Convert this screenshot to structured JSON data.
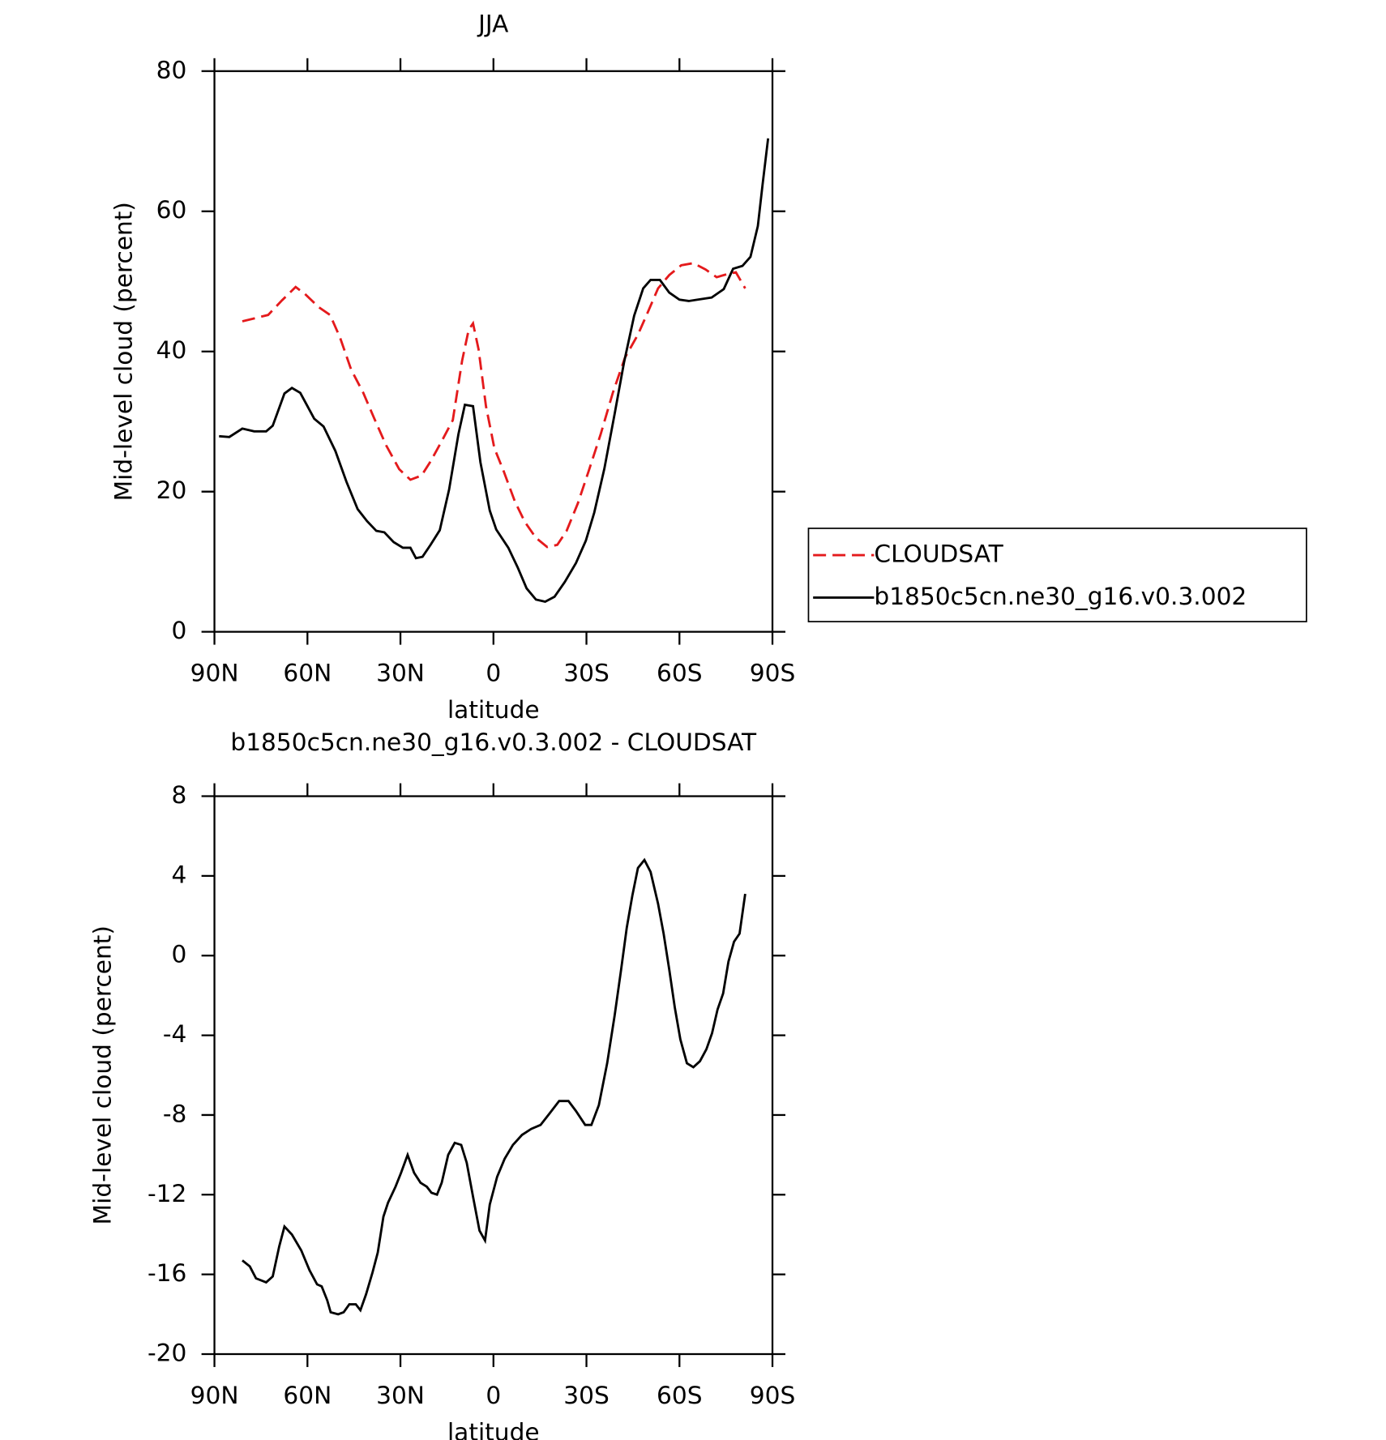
{
  "chart_data": [
    {
      "type": "line",
      "title": "JJA",
      "xlabel": "latitude",
      "ylabel": "Mid-level cloud (percent)",
      "xlim": [
        90,
        -90
      ],
      "xticks": [
        {
          "value": 90,
          "label": "90N"
        },
        {
          "value": 60,
          "label": "60N"
        },
        {
          "value": 30,
          "label": "30N"
        },
        0,
        {
          "value": -30,
          "label": "30S"
        },
        {
          "value": -60,
          "label": "60S"
        },
        {
          "value": -90,
          "label": "90S"
        }
      ],
      "ylim": [
        0,
        80
      ],
      "yticks": [
        0,
        20,
        40,
        60,
        80
      ],
      "legend": "right",
      "series": [
        {
          "name": "CLOUDSAT",
          "color": "#e41a1c",
          "linestyle": "dashed",
          "x": [
            81,
            72.7,
            68.2,
            63.8,
            60.8,
            56.3,
            52.7,
            49.5,
            45.9,
            42.0,
            38.4,
            34.6,
            30.4,
            26.8,
            23.2,
            20.3,
            16.7,
            13.1,
            10.1,
            8.0,
            6.6,
            4.8,
            2.4,
            -0.3,
            -3.3,
            -6.9,
            -10.1,
            -13.7,
            -17.3,
            -20.6,
            -23.6,
            -27.2,
            -30.7,
            -34.6,
            -38.5,
            -42.4,
            -46.6,
            -49.5,
            -53.1,
            -56.7,
            -60.6,
            -64.5,
            -68.4,
            -72,
            -75.2,
            -78.2,
            -81.2
          ],
          "values": [
            44.3,
            45.2,
            47.3,
            49.2,
            48.2,
            46.3,
            45.2,
            42.0,
            37.4,
            34.1,
            30.4,
            26.6,
            23.2,
            21.7,
            22.3,
            24.3,
            27.2,
            30.2,
            38.7,
            43.1,
            44.0,
            40.3,
            32.2,
            26.2,
            22.9,
            18.6,
            15.7,
            13.4,
            12.1,
            12.4,
            14.4,
            18.3,
            22.9,
            28.2,
            34.1,
            39.1,
            42.4,
            45.3,
            49.0,
            50.9,
            52.3,
            52.6,
            51.7,
            50.6,
            51.0,
            51.3,
            49.0
          ]
        },
        {
          "name": "b1850c5cn.ne30_g16.v0.3.002",
          "color": "#000000",
          "linestyle": "solid",
          "x": [
            88.5,
            85.2,
            81,
            77.2,
            73.3,
            71.2,
            67.4,
            65,
            62.3,
            57.8,
            54.8,
            51,
            47.4,
            43.8,
            40.8,
            37.8,
            35.2,
            32.2,
            29.2,
            26.8,
            25,
            22.9,
            20.3,
            17.3,
            14.3,
            11.3,
            9.2,
            6.6,
            4.2,
            1.2,
            -0.9,
            -4.8,
            -7.8,
            -10.7,
            -13.7,
            -16.7,
            -19.7,
            -23,
            -26.6,
            -29.8,
            -32.5,
            -35.8,
            -39.1,
            -42.1,
            -45.4,
            -48.3,
            -50.7,
            -53.7,
            -56.7,
            -60,
            -63,
            -65.9,
            -70.4,
            -74.3,
            -77.3,
            -80.3,
            -82.9,
            -85.3,
            -86.8,
            -88.6
          ],
          "values": [
            27.9,
            27.8,
            29.0,
            28.6,
            28.6,
            29.4,
            34.0,
            34.8,
            34.1,
            30.4,
            29.3,
            25.8,
            21.4,
            17.5,
            15.8,
            14.4,
            14.2,
            12.8,
            12.0,
            12.0,
            10.5,
            10.7,
            12.4,
            14.5,
            20.3,
            28.2,
            32.4,
            32.2,
            24.2,
            17.3,
            14.6,
            12.0,
            9.2,
            6.2,
            4.6,
            4.3,
            5.0,
            7.1,
            9.8,
            13.0,
            17.0,
            23.3,
            31.1,
            38.4,
            45.1,
            49.0,
            50.2,
            50.2,
            48.4,
            47.4,
            47.2,
            47.4,
            47.7,
            48.9,
            51.8,
            52.2,
            53.5,
            57.9,
            63.8,
            70.4
          ]
        }
      ]
    },
    {
      "type": "line",
      "title": "b1850c5cn.ne30_g16.v0.3.002 - CLOUDSAT",
      "xlabel": "latitude",
      "ylabel": "Mid-level cloud (percent)",
      "xlim": [
        90,
        -90
      ],
      "xticks": [
        {
          "value": 90,
          "label": "90N"
        },
        {
          "value": 60,
          "label": "60N"
        },
        {
          "value": 30,
          "label": "30N"
        },
        0,
        {
          "value": -30,
          "label": "30S"
        },
        {
          "value": -60,
          "label": "60S"
        },
        {
          "value": -90,
          "label": "90S"
        }
      ],
      "ylim": [
        -20,
        8
      ],
      "yticks": [
        -20,
        -16,
        -12,
        -8,
        -4,
        0,
        4,
        8
      ],
      "series": [
        {
          "color": "#000000",
          "linestyle": "solid",
          "x": [
            81,
            78.6,
            76.6,
            73.3,
            71.2,
            69.1,
            67.4,
            65,
            62,
            59.3,
            56.9,
            55.4,
            53.6,
            52.5,
            50.1,
            48.3,
            46.5,
            44.4,
            42.9,
            41.1,
            39.0,
            37.3,
            35.5,
            34.0,
            31.6,
            29.8,
            27.7,
            25.6,
            23.5,
            21.5,
            20.0,
            18.2,
            16.7,
            14.6,
            12.5,
            10.4,
            8.6,
            6.6,
            4.5,
            2.7,
            1.2,
            -1.2,
            -3.6,
            -6.3,
            -9.2,
            -12.2,
            -15.2,
            -18.2,
            -21.2,
            -24.2,
            -26.6,
            -29.6,
            -31.6,
            -34.0,
            -36.7,
            -39.1,
            -41.2,
            -43.0,
            -44.8,
            -46.6,
            -48.7,
            -50.7,
            -53.1,
            -54.9,
            -56.7,
            -58.5,
            -60.3,
            -62.4,
            -64.5,
            -66.6,
            -68.7,
            -70.5,
            -72.3,
            -74.1,
            -75.8,
            -77.6,
            -79.4,
            -81.2
          ],
          "values": [
            -15.3,
            -15.6,
            -16.2,
            -16.4,
            -16.1,
            -14.6,
            -13.6,
            -14.0,
            -14.8,
            -15.8,
            -16.5,
            -16.6,
            -17.3,
            -17.9,
            -18.0,
            -17.9,
            -17.5,
            -17.5,
            -17.8,
            -17.0,
            -15.9,
            -14.9,
            -13.1,
            -12.4,
            -11.6,
            -10.9,
            -10.0,
            -10.9,
            -11.4,
            -11.6,
            -11.9,
            -12.0,
            -11.4,
            -10.0,
            -9.4,
            -9.5,
            -10.4,
            -12.1,
            -13.8,
            -14.3,
            -12.5,
            -11.1,
            -10.2,
            -9.5,
            -9.0,
            -8.7,
            -8.5,
            -7.9,
            -7.3,
            -7.3,
            -7.8,
            -8.5,
            -8.5,
            -7.5,
            -5.4,
            -3.0,
            -0.7,
            1.4,
            3.0,
            4.4,
            4.8,
            4.2,
            2.6,
            1.1,
            -0.7,
            -2.6,
            -4.2,
            -5.4,
            -5.6,
            -5.3,
            -4.7,
            -3.9,
            -2.7,
            -1.9,
            -0.3,
            0.7,
            1.1,
            3.1
          ]
        }
      ]
    }
  ]
}
